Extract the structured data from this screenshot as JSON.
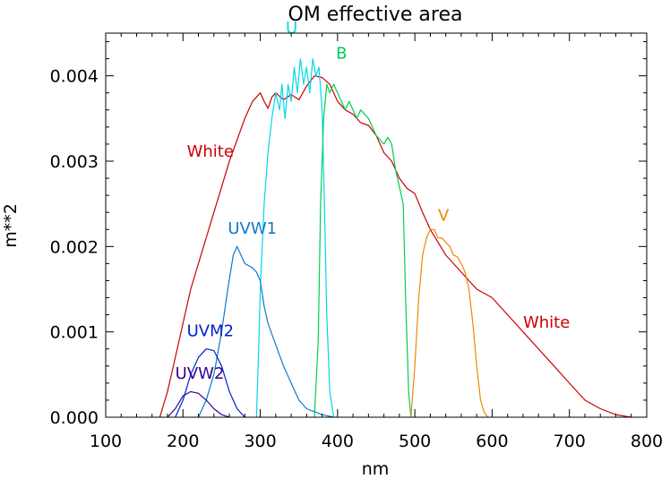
{
  "chart_data": {
    "type": "line",
    "title": "OM effective area",
    "xlabel": "nm",
    "ylabel": "m**2",
    "xlim": [
      100,
      800
    ],
    "ylim": [
      0,
      0.0045
    ],
    "grid": false,
    "x_ticks": [
      "100",
      "200",
      "300",
      "400",
      "500",
      "600",
      "700",
      "800"
    ],
    "y_ticks": [
      "0.000",
      "0.001",
      "0.002",
      "0.003",
      "0.004"
    ],
    "series": [
      {
        "name": "White",
        "color": "#cc0000",
        "points": [
          [
            170,
            0
          ],
          [
            180,
            0.0003
          ],
          [
            190,
            0.0007
          ],
          [
            200,
            0.0011
          ],
          [
            210,
            0.0015
          ],
          [
            220,
            0.0018
          ],
          [
            240,
            0.0024
          ],
          [
            260,
            0.003
          ],
          [
            280,
            0.0035
          ],
          [
            290,
            0.0037
          ],
          [
            300,
            0.0038
          ],
          [
            305,
            0.0037
          ],
          [
            310,
            0.00362
          ],
          [
            315,
            0.00375
          ],
          [
            320,
            0.0038
          ],
          [
            330,
            0.00372
          ],
          [
            340,
            0.00378
          ],
          [
            350,
            0.00372
          ],
          [
            360,
            0.00388
          ],
          [
            370,
            0.004
          ],
          [
            380,
            0.00398
          ],
          [
            390,
            0.0039
          ],
          [
            400,
            0.0037
          ],
          [
            410,
            0.0036
          ],
          [
            420,
            0.00355
          ],
          [
            430,
            0.00345
          ],
          [
            440,
            0.00342
          ],
          [
            450,
            0.0033
          ],
          [
            460,
            0.0031
          ],
          [
            470,
            0.003
          ],
          [
            480,
            0.0028
          ],
          [
            490,
            0.00268
          ],
          [
            500,
            0.00262
          ],
          [
            510,
            0.0024
          ],
          [
            520,
            0.0022
          ],
          [
            530,
            0.00205
          ],
          [
            540,
            0.0019
          ],
          [
            550,
            0.0018
          ],
          [
            560,
            0.0017
          ],
          [
            580,
            0.0015
          ],
          [
            600,
            0.0014
          ],
          [
            620,
            0.0012
          ],
          [
            650,
            0.0009
          ],
          [
            680,
            0.0006
          ],
          [
            700,
            0.0004
          ],
          [
            720,
            0.0002
          ],
          [
            740,
            0.0001
          ],
          [
            760,
            3e-05
          ],
          [
            780,
            0
          ]
        ]
      },
      {
        "name": "U",
        "color": "#00d8e8",
        "points": [
          [
            295,
            0
          ],
          [
            298,
            0.0008
          ],
          [
            300,
            0.0015
          ],
          [
            305,
            0.0025
          ],
          [
            310,
            0.0031
          ],
          [
            315,
            0.0035
          ],
          [
            320,
            0.0038
          ],
          [
            325,
            0.0036
          ],
          [
            328,
            0.0039
          ],
          [
            332,
            0.0035
          ],
          [
            336,
            0.0039
          ],
          [
            340,
            0.0037
          ],
          [
            344,
            0.0041
          ],
          [
            348,
            0.0038
          ],
          [
            352,
            0.0042
          ],
          [
            356,
            0.0039
          ],
          [
            360,
            0.0041
          ],
          [
            364,
            0.0038
          ],
          [
            368,
            0.0042
          ],
          [
            372,
            0.004
          ],
          [
            376,
            0.0041
          ],
          [
            380,
            0.0036
          ],
          [
            383,
            0.0025
          ],
          [
            386,
            0.0012
          ],
          [
            390,
            0.0003
          ],
          [
            395,
            0
          ]
        ]
      },
      {
        "name": "B",
        "color": "#00cc55",
        "points": [
          [
            370,
            0
          ],
          [
            375,
            0.0009
          ],
          [
            378,
            0.0025
          ],
          [
            382,
            0.0035
          ],
          [
            386,
            0.0039
          ],
          [
            390,
            0.0038
          ],
          [
            395,
            0.0039
          ],
          [
            400,
            0.0038
          ],
          [
            405,
            0.0037
          ],
          [
            410,
            0.0036
          ],
          [
            415,
            0.0037
          ],
          [
            420,
            0.0036
          ],
          [
            425,
            0.0035
          ],
          [
            430,
            0.0036
          ],
          [
            440,
            0.0035
          ],
          [
            450,
            0.0033
          ],
          [
            460,
            0.0032
          ],
          [
            465,
            0.00328
          ],
          [
            470,
            0.0032
          ],
          [
            475,
            0.0029
          ],
          [
            480,
            0.0027
          ],
          [
            485,
            0.0025
          ],
          [
            488,
            0.0014
          ],
          [
            492,
            0.0003
          ],
          [
            495,
            0
          ]
        ]
      },
      {
        "name": "V",
        "color": "#ee8800",
        "points": [
          [
            495,
            0
          ],
          [
            500,
            0.0006
          ],
          [
            505,
            0.0014
          ],
          [
            510,
            0.0019
          ],
          [
            515,
            0.0021
          ],
          [
            520,
            0.0022
          ],
          [
            525,
            0.0022
          ],
          [
            530,
            0.0021
          ],
          [
            535,
            0.0021
          ],
          [
            540,
            0.00205
          ],
          [
            545,
            0.002
          ],
          [
            550,
            0.0019
          ],
          [
            555,
            0.00188
          ],
          [
            560,
            0.0018
          ],
          [
            565,
            0.0017
          ],
          [
            570,
            0.0015
          ],
          [
            575,
            0.0011
          ],
          [
            580,
            0.0006
          ],
          [
            585,
            0.0002
          ],
          [
            590,
            5e-05
          ],
          [
            595,
            0
          ]
        ]
      },
      {
        "name": "UVW1",
        "color": "#1177cc",
        "points": [
          [
            220,
            0
          ],
          [
            230,
            0.0002
          ],
          [
            240,
            0.0005
          ],
          [
            250,
            0.001
          ],
          [
            258,
            0.0015
          ],
          [
            265,
            0.0019
          ],
          [
            270,
            0.002
          ],
          [
            275,
            0.0019
          ],
          [
            280,
            0.0018
          ],
          [
            290,
            0.00175
          ],
          [
            295,
            0.0017
          ],
          [
            300,
            0.0016
          ],
          [
            305,
            0.0013
          ],
          [
            310,
            0.0011
          ],
          [
            320,
            0.00085
          ],
          [
            330,
            0.0006
          ],
          [
            340,
            0.0004
          ],
          [
            350,
            0.0002
          ],
          [
            360,
            0.0001
          ],
          [
            380,
            3e-05
          ],
          [
            395,
            0
          ]
        ]
      },
      {
        "name": "UVM2",
        "color": "#0022cc",
        "points": [
          [
            190,
            0
          ],
          [
            200,
            0.0002
          ],
          [
            210,
            0.0005
          ],
          [
            220,
            0.0007
          ],
          [
            230,
            0.0008
          ],
          [
            240,
            0.00078
          ],
          [
            250,
            0.0006
          ],
          [
            260,
            0.0003
          ],
          [
            270,
            0.0001
          ],
          [
            280,
            0
          ]
        ]
      },
      {
        "name": "UVW2",
        "color": "#330099",
        "points": [
          [
            180,
            0
          ],
          [
            190,
            0.0001
          ],
          [
            200,
            0.00025
          ],
          [
            210,
            0.0003
          ],
          [
            220,
            0.00028
          ],
          [
            230,
            0.0002
          ],
          [
            240,
            0.0001
          ],
          [
            250,
            3e-05
          ],
          [
            260,
            0
          ]
        ]
      }
    ],
    "annotations": [
      {
        "text": "White",
        "x": 205,
        "y": 0.00305,
        "color": "#cc0000"
      },
      {
        "text": "White",
        "x": 640,
        "y": 0.00105,
        "color": "#cc0000"
      },
      {
        "text": "U",
        "x": 333,
        "y": 0.0045,
        "color": "#00d8e8"
      },
      {
        "text": "B",
        "x": 398,
        "y": 0.0042,
        "color": "#00cc55"
      },
      {
        "text": "V",
        "x": 530,
        "y": 0.0023,
        "color": "#ee8800"
      },
      {
        "text": "UVW1",
        "x": 258,
        "y": 0.00215,
        "color": "#1177cc"
      },
      {
        "text": "UVM2",
        "x": 205,
        "y": 0.00095,
        "color": "#0022cc"
      },
      {
        "text": "UVW2",
        "x": 190,
        "y": 0.00045,
        "color": "#330099"
      }
    ]
  }
}
